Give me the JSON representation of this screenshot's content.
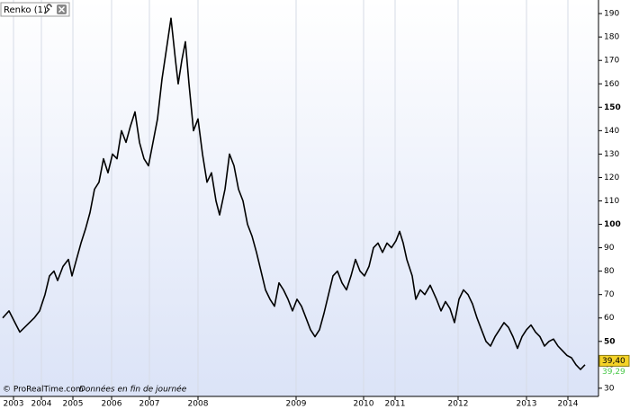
{
  "chart_data": {
    "type": "line",
    "title": "Renko (1)",
    "footer": "© ProRealTime.com",
    "footer_note": "Données en fin de journée",
    "color": "#000000",
    "grid": true,
    "xlim": [
      0,
      665
    ],
    "ylim": [
      26.5,
      195.8
    ],
    "xticks": [
      {
        "value": 15,
        "label": "2003"
      },
      {
        "value": 46,
        "label": "2004"
      },
      {
        "value": 81,
        "label": "2005"
      },
      {
        "value": 124,
        "label": "2006"
      },
      {
        "value": 166,
        "label": "2007"
      },
      {
        "value": 220,
        "label": "2008"
      },
      {
        "value": 329,
        "label": "2009"
      },
      {
        "value": 404,
        "label": "2010"
      },
      {
        "value": 439,
        "label": "2011"
      },
      {
        "value": 509,
        "label": "2012"
      },
      {
        "value": 585,
        "label": "2013"
      },
      {
        "value": 631,
        "label": "2014"
      }
    ],
    "yticks": [
      30,
      40,
      50,
      60,
      70,
      80,
      90,
      100,
      110,
      120,
      130,
      140,
      150,
      160,
      170,
      180,
      190
    ],
    "bold_yticks": [
      50,
      100,
      150
    ],
    "markers": [
      {
        "value": 39.4,
        "label": "39,40",
        "color": "#f5d327"
      },
      {
        "value": 39.29,
        "label": "39,29",
        "color": "#4cc94c"
      }
    ],
    "series": [
      {
        "name": "Renko",
        "color": "#000000",
        "x": [
          3,
          10,
          18,
          22,
          30,
          38,
          44,
          50,
          55,
          60,
          64,
          70,
          76,
          80,
          85,
          90,
          95,
          100,
          105,
          110,
          115,
          120,
          125,
          130,
          135,
          140,
          145,
          150,
          155,
          160,
          165,
          170,
          175,
          180,
          185,
          190,
          195,
          198,
          202,
          206,
          210,
          215,
          220,
          225,
          230,
          235,
          240,
          244,
          250,
          255,
          260,
          265,
          270,
          275,
          280,
          285,
          290,
          295,
          300,
          305,
          310,
          315,
          320,
          325,
          330,
          335,
          340,
          345,
          350,
          355,
          360,
          365,
          370,
          375,
          380,
          385,
          390,
          395,
          400,
          405,
          410,
          415,
          420,
          425,
          430,
          435,
          440,
          444,
          448,
          452,
          458,
          462,
          467,
          472,
          478,
          485,
          490,
          495,
          500,
          505,
          510,
          515,
          520,
          525,
          530,
          535,
          540,
          545,
          550,
          555,
          560,
          565,
          570,
          575,
          580,
          585,
          590,
          595,
          600,
          605,
          610,
          615,
          620,
          625,
          630,
          635,
          640,
          645,
          650
        ],
        "values": [
          60,
          63,
          57,
          54,
          57,
          60,
          63,
          70,
          78,
          80,
          76,
          82,
          85,
          78,
          85,
          92,
          98,
          105,
          115,
          118,
          128,
          122,
          130,
          128,
          140,
          135,
          142,
          148,
          135,
          128,
          125,
          135,
          145,
          162,
          175,
          188,
          170,
          160,
          170,
          178,
          160,
          140,
          145,
          130,
          118,
          122,
          110,
          104,
          115,
          130,
          125,
          115,
          110,
          100,
          95,
          88,
          80,
          72,
          68,
          65,
          75,
          72,
          68,
          63,
          68,
          65,
          60,
          55,
          52,
          55,
          62,
          70,
          78,
          80,
          75,
          72,
          78,
          85,
          80,
          78,
          82,
          90,
          92,
          88,
          92,
          90,
          93,
          97,
          92,
          85,
          78,
          68,
          72,
          70,
          74,
          68,
          63,
          67,
          64,
          58,
          68,
          72,
          70,
          66,
          60,
          55,
          50,
          48,
          52,
          55,
          58,
          56,
          52,
          47,
          52,
          55,
          57,
          54,
          52,
          48,
          50,
          51,
          48,
          46,
          44,
          43,
          40,
          38,
          40
        ]
      }
    ]
  }
}
